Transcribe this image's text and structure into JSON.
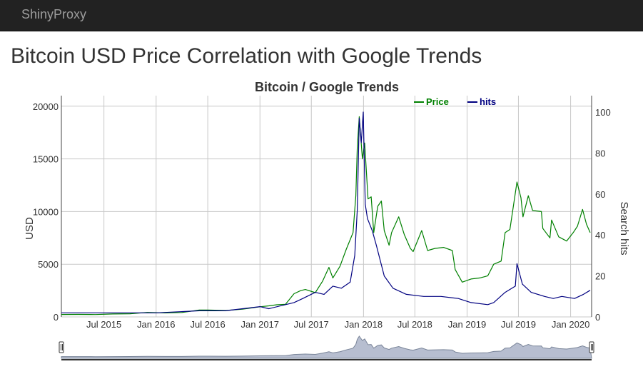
{
  "navbar": {
    "brand": "ShinyProxy"
  },
  "page": {
    "title": "Bitcoin USD Price Correlation with Google Trends"
  },
  "colors": {
    "price": "#008000",
    "hits": "#000080",
    "navbar_bg": "#222222",
    "navigator_fill": "#b7bed0"
  },
  "chart_data": {
    "type": "line",
    "title": "Bitcoin / Google Trends",
    "xlabel": "",
    "ylabel": "USD",
    "y2label": "Search hits",
    "xlim": [
      "2015-02-01",
      "2020-03-15"
    ],
    "ylim": [
      0,
      21000
    ],
    "y2lim": [
      0,
      108
    ],
    "yticks": [
      0,
      5000,
      10000,
      15000,
      20000
    ],
    "y2ticks": [
      0,
      20,
      40,
      60,
      80,
      100
    ],
    "xticks": [
      {
        "date": "2015-07-01",
        "label": "Jul 2015"
      },
      {
        "date": "2016-01-01",
        "label": "Jan 2016"
      },
      {
        "date": "2016-07-01",
        "label": "Jul 2016"
      },
      {
        "date": "2017-01-01",
        "label": "Jan 2017"
      },
      {
        "date": "2017-07-01",
        "label": "Jul 2017"
      },
      {
        "date": "2018-01-01",
        "label": "Jan 2018"
      },
      {
        "date": "2018-07-01",
        "label": "Jul 2018"
      },
      {
        "date": "2019-01-01",
        "label": "Jan 2019"
      },
      {
        "date": "2019-07-01",
        "label": "Jul 2019"
      },
      {
        "date": "2020-01-01",
        "label": "Jan 2020"
      }
    ],
    "grid": true,
    "legend_position": "top-right",
    "series": [
      {
        "name": "Price",
        "axis": "left",
        "x": [
          "2015-02-01",
          "2015-04-01",
          "2015-06-01",
          "2015-08-01",
          "2015-10-01",
          "2015-12-01",
          "2016-02-01",
          "2016-04-01",
          "2016-06-01",
          "2016-07-01",
          "2016-09-01",
          "2016-11-01",
          "2017-01-01",
          "2017-02-01",
          "2017-03-01",
          "2017-04-01",
          "2017-05-01",
          "2017-05-25",
          "2017-06-10",
          "2017-07-15",
          "2017-08-10",
          "2017-09-01",
          "2017-09-15",
          "2017-10-10",
          "2017-11-01",
          "2017-11-25",
          "2017-12-05",
          "2017-12-10",
          "2017-12-17",
          "2017-12-28",
          "2018-01-05",
          "2018-01-17",
          "2018-01-28",
          "2018-02-06",
          "2018-02-20",
          "2018-03-05",
          "2018-03-15",
          "2018-04-01",
          "2018-04-10",
          "2018-05-05",
          "2018-05-25",
          "2018-06-15",
          "2018-06-25",
          "2018-07-25",
          "2018-08-15",
          "2018-09-10",
          "2018-10-10",
          "2018-11-10",
          "2018-11-20",
          "2018-12-15",
          "2019-01-15",
          "2019-02-15",
          "2019-03-15",
          "2019-04-05",
          "2019-05-01",
          "2019-05-15",
          "2019-06-01",
          "2019-06-26",
          "2019-07-10",
          "2019-07-17",
          "2019-08-05",
          "2019-08-20",
          "2019-09-20",
          "2019-09-25",
          "2019-10-20",
          "2019-10-26",
          "2019-11-20",
          "2019-12-18",
          "2020-01-10",
          "2020-01-25",
          "2020-02-12",
          "2020-02-26",
          "2020-03-10"
        ],
        "y": [
          230,
          240,
          225,
          280,
          300,
          430,
          380,
          420,
          650,
          660,
          610,
          730,
          960,
          1050,
          1150,
          1200,
          2200,
          2500,
          2600,
          2300,
          3400,
          4700,
          3700,
          4800,
          6400,
          8000,
          11500,
          16000,
          19000,
          15000,
          16500,
          11200,
          11400,
          8000,
          10500,
          11000,
          8200,
          6800,
          8000,
          9500,
          7800,
          6500,
          6200,
          8200,
          6300,
          6500,
          6600,
          6300,
          4500,
          3300,
          3600,
          3700,
          3900,
          5000,
          5300,
          8000,
          8300,
          12800,
          11300,
          9500,
          11500,
          10100,
          10000,
          8400,
          7500,
          9200,
          7600,
          7200,
          8000,
          8600,
          10200,
          8800,
          8000
        ]
      },
      {
        "name": "hits",
        "axis": "right",
        "x": [
          "2015-02-01",
          "2015-07-01",
          "2016-01-01",
          "2016-06-01",
          "2016-07-01",
          "2016-09-01",
          "2017-01-01",
          "2017-02-01",
          "2017-05-01",
          "2017-06-01",
          "2017-07-15",
          "2017-08-15",
          "2017-09-15",
          "2017-10-15",
          "2017-11-15",
          "2017-12-01",
          "2017-12-10",
          "2017-12-17",
          "2017-12-24",
          "2017-12-31",
          "2018-01-07",
          "2018-01-15",
          "2018-02-01",
          "2018-02-15",
          "2018-03-15",
          "2018-04-15",
          "2018-06-01",
          "2018-08-01",
          "2018-10-01",
          "2018-12-01",
          "2019-01-15",
          "2019-03-15",
          "2019-04-05",
          "2019-05-15",
          "2019-06-20",
          "2019-06-26",
          "2019-07-15",
          "2019-08-15",
          "2019-10-01",
          "2019-11-01",
          "2019-12-01",
          "2020-01-15",
          "2020-02-15",
          "2020-03-10"
        ],
        "y": [
          2,
          2,
          2,
          3,
          3,
          3,
          5,
          4,
          7,
          9,
          12,
          11,
          15,
          14,
          17,
          30,
          52,
          97,
          85,
          100,
          55,
          48,
          42,
          35,
          20,
          14,
          11,
          10,
          10,
          9,
          7,
          6,
          7,
          12,
          15,
          26,
          16,
          12,
          10,
          9,
          10,
          9,
          11,
          13
        ]
      }
    ]
  }
}
